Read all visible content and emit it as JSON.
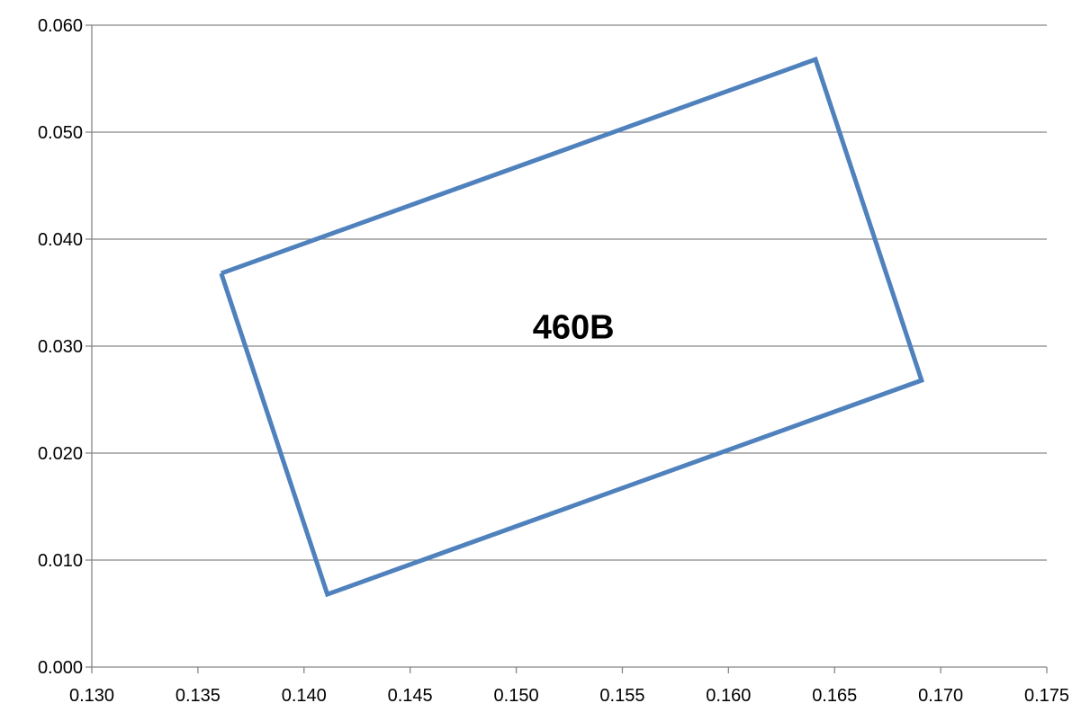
{
  "chart_data": {
    "type": "line",
    "title": "",
    "xlabel": "",
    "ylabel": "",
    "xlim": [
      0.13,
      0.175
    ],
    "ylim": [
      0.0,
      0.06
    ],
    "x_ticks": [
      "0.130",
      "0.135",
      "0.140",
      "0.145",
      "0.150",
      "0.155",
      "0.160",
      "0.165",
      "0.170",
      "0.175"
    ],
    "y_ticks": [
      "0.000",
      "0.010",
      "0.020",
      "0.030",
      "0.040",
      "0.050",
      "0.060"
    ],
    "grid": "horizontal",
    "legend": "none",
    "series": [
      {
        "color": "#4f81bd",
        "points": [
          [
            0.1361,
            0.0368
          ],
          [
            0.1641,
            0.0568
          ],
          [
            0.1691,
            0.0268
          ],
          [
            0.1411,
            0.0068
          ],
          [
            0.1361,
            0.0368
          ]
        ]
      }
    ],
    "annotations": [
      {
        "text": "460B",
        "x": 0.1527,
        "y": 0.0318
      }
    ]
  }
}
